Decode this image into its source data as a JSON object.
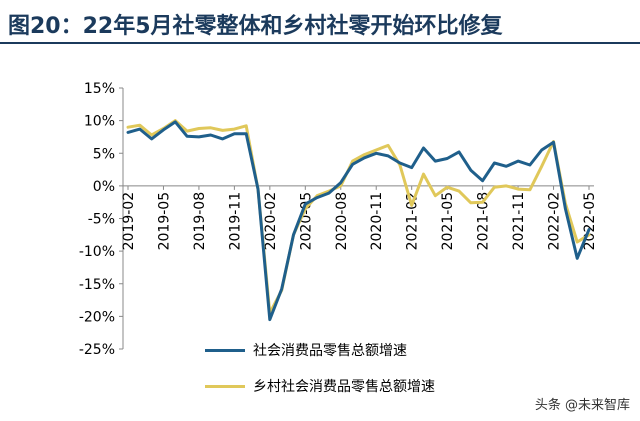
{
  "title": "图20：22年5月社零整体和乡村社零开始环比修复",
  "watermark": "头条 @未来智库",
  "colors": {
    "series1": "#1f5f8b",
    "series2": "#e0c85a",
    "title": "#1b3a5c"
  },
  "chart_data": {
    "type": "line",
    "ylim": [
      -25,
      15
    ],
    "yticks": [
      "15%",
      "10%",
      "5%",
      "0%",
      "-5%",
      "-10%",
      "-15%",
      "-20%",
      "-25%"
    ],
    "xtick_labels": [
      "2019-02",
      "2019-05",
      "2019-08",
      "2019-11",
      "2020-02",
      "2020-05",
      "2020-08",
      "2020-11",
      "2021-02",
      "2021-05",
      "2021-08",
      "2021-11",
      "2022-02",
      "2022-05"
    ],
    "x": [
      "2019-02",
      "2019-03",
      "2019-04",
      "2019-05",
      "2019-06",
      "2019-07",
      "2019-08",
      "2019-09",
      "2019-10",
      "2019-11",
      "2019-12",
      "2020-01",
      "2020-02",
      "2020-03",
      "2020-04",
      "2020-05",
      "2020-06",
      "2020-07",
      "2020-08",
      "2020-09",
      "2020-10",
      "2020-11",
      "2020-12",
      "2021-01",
      "2021-02",
      "2021-03",
      "2021-04",
      "2021-05",
      "2021-06",
      "2021-07",
      "2021-08",
      "2021-09",
      "2021-10",
      "2021-11",
      "2021-12",
      "2022-01",
      "2022-02",
      "2022-03",
      "2022-04",
      "2022-05"
    ],
    "series": [
      {
        "name": "社会消费品零售总额增速",
        "values": [
          8.2,
          8.7,
          7.2,
          8.6,
          9.8,
          7.6,
          7.5,
          7.8,
          7.2,
          8.0,
          8.0,
          -0.5,
          -20.5,
          -15.8,
          -7.5,
          -2.8,
          -1.8,
          -1.1,
          0.5,
          3.3,
          4.3,
          5.0,
          4.6,
          3.5,
          2.8,
          5.8,
          3.8,
          4.2,
          5.2,
          2.4,
          0.8,
          3.5,
          3.0,
          3.8,
          3.2,
          5.5,
          6.7,
          -3.5,
          -11.1,
          -6.7
        ]
      },
      {
        "name": "乡村社会消费品零售总额增速",
        "values": [
          9.0,
          9.3,
          7.8,
          8.8,
          10.0,
          8.4,
          8.8,
          8.9,
          8.5,
          8.7,
          9.2,
          -0.5,
          -19.5,
          -16.0,
          -7.5,
          -3.5,
          -1.5,
          -0.8,
          0.0,
          3.8,
          4.8,
          5.5,
          6.2,
          3.2,
          -3.0,
          1.8,
          -1.5,
          -0.2,
          -0.8,
          -2.6,
          -2.5,
          -0.2,
          0.0,
          -0.5,
          -0.6,
          3.0,
          6.8,
          -2.7,
          -8.6,
          -7.5
        ]
      }
    ]
  }
}
